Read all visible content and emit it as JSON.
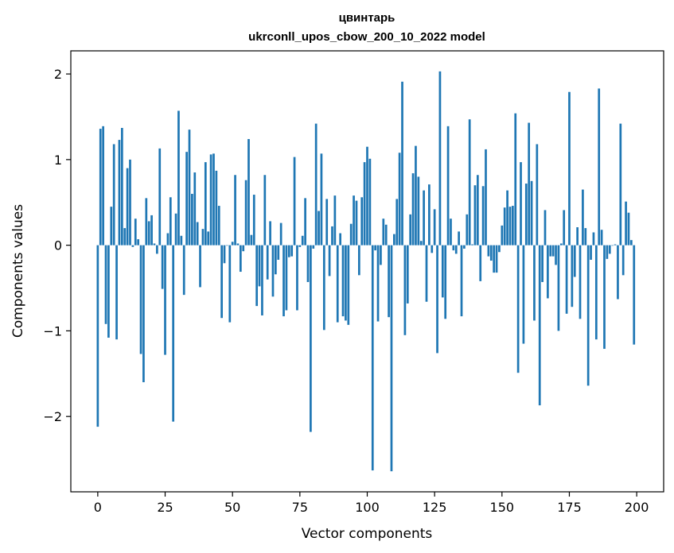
{
  "chart_data": {
    "type": "bar",
    "title_line1": "цвинтарь",
    "title_line2": "ukrconll_upos_cbow_200_10_2022 model",
    "xlabel": "Vector components",
    "ylabel": "Components values",
    "xlim": [
      -10,
      210
    ],
    "ylim": [
      -2.88,
      2.27
    ],
    "xticks": [
      0,
      25,
      50,
      75,
      100,
      125,
      150,
      175,
      200
    ],
    "yticks": [
      -2,
      -1,
      0,
      1,
      2
    ],
    "ytick_labels": [
      "−2",
      "−1",
      "0",
      "1",
      "2"
    ],
    "grid": false,
    "bar_color": "#1f77b4",
    "values": [
      -2.12,
      1.36,
      1.39,
      -0.92,
      -1.08,
      0.45,
      1.18,
      -1.1,
      1.23,
      1.37,
      0.2,
      0.9,
      1.0,
      -0.02,
      0.31,
      0.07,
      -1.27,
      -1.6,
      0.55,
      0.28,
      0.35,
      0.02,
      -0.1,
      1.13,
      -0.51,
      -1.28,
      0.14,
      0.56,
      -2.06,
      0.37,
      1.57,
      0.11,
      -0.58,
      1.09,
      1.35,
      0.6,
      0.85,
      0.27,
      -0.49,
      0.19,
      0.97,
      0.16,
      1.06,
      1.07,
      0.87,
      0.46,
      -0.85,
      -0.21,
      0.0,
      -0.9,
      0.04,
      0.82,
      0.02,
      -0.31,
      -0.07,
      0.76,
      1.24,
      0.12,
      0.59,
      -0.71,
      -0.48,
      -0.82,
      0.82,
      -0.4,
      0.28,
      -0.6,
      -0.34,
      -0.17,
      0.26,
      -0.83,
      -0.76,
      -0.14,
      -0.13,
      1.03,
      -0.76,
      -0.02,
      0.11,
      0.55,
      -0.43,
      -2.18,
      -0.04,
      1.42,
      0.4,
      1.07,
      -0.99,
      0.54,
      -0.36,
      0.22,
      0.58,
      -0.9,
      0.14,
      -0.83,
      -0.88,
      -0.93,
      0.25,
      0.58,
      0.52,
      -0.35,
      0.56,
      0.97,
      1.15,
      1.01,
      -2.63,
      -0.06,
      -0.89,
      -0.23,
      0.31,
      0.24,
      -0.84,
      -2.64,
      0.13,
      0.54,
      1.08,
      1.91,
      -1.05,
      -0.68,
      0.36,
      0.84,
      1.16,
      0.8,
      0.05,
      0.64,
      -0.66,
      0.71,
      -0.09,
      0.42,
      -1.26,
      2.03,
      -0.61,
      -0.86,
      1.39,
      0.31,
      -0.06,
      -0.1,
      0.16,
      -0.83,
      -0.04,
      0.36,
      1.47,
      0.01,
      0.7,
      0.82,
      -0.42,
      0.69,
      1.12,
      -0.13,
      -0.18,
      -0.32,
      -0.32,
      -0.08,
      0.23,
      0.44,
      0.64,
      0.45,
      0.46,
      1.54,
      -1.49,
      0.97,
      -1.15,
      0.72,
      1.43,
      0.75,
      -0.88,
      1.18,
      -1.87,
      -0.43,
      0.41,
      -0.62,
      -0.13,
      -0.13,
      -0.23,
      -1.0,
      0.02,
      0.41,
      -0.8,
      1.79,
      -0.72,
      -0.37,
      0.21,
      -0.86,
      0.65,
      0.2,
      -1.64,
      -0.17,
      0.15,
      -1.1,
      1.83,
      0.18,
      -1.21,
      -0.16,
      -0.1,
      0.0,
      0.01,
      -0.63,
      1.42,
      -0.35,
      0.51,
      0.38,
      0.06,
      -1.16
    ]
  }
}
